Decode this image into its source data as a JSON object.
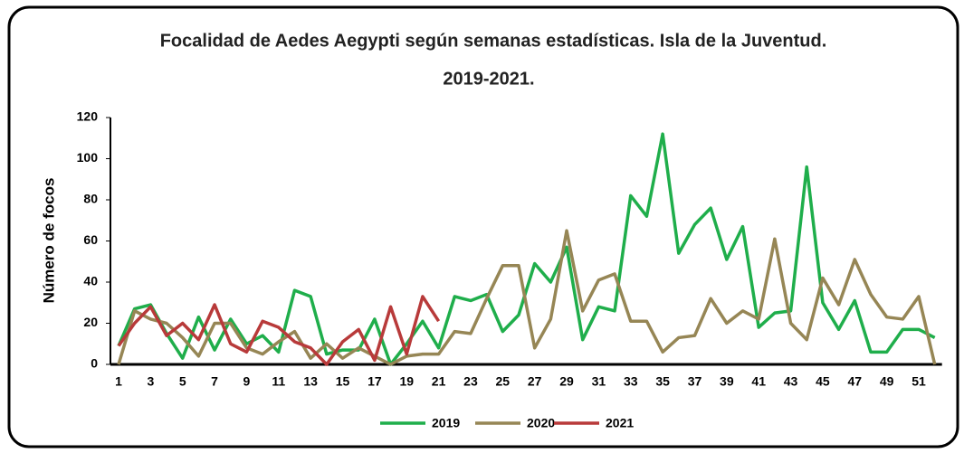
{
  "chart_data": {
    "type": "line",
    "title": [
      "Focalidad de Aedes Aegypti según semanas estadísticas. Isla de la Juventud.",
      "2019-2021."
    ],
    "ylabel": "Número de focos",
    "categories": [
      "1",
      null,
      "3",
      null,
      "5",
      null,
      "7",
      null,
      "9",
      null,
      "11",
      null,
      "13",
      null,
      "15",
      null,
      "17",
      null,
      "19",
      null,
      "21",
      null,
      "23",
      null,
      "25",
      null,
      "27",
      null,
      "29",
      null,
      "31",
      null,
      "33",
      null,
      "35",
      null,
      "37",
      null,
      "39",
      null,
      "41",
      null,
      "43",
      null,
      "45",
      null,
      "47",
      null,
      "49",
      null,
      "51",
      null
    ],
    "series": [
      {
        "name": "2019",
        "color": "#1fae4b",
        "values": [
          9,
          27,
          29,
          15,
          3,
          23,
          7,
          22,
          10,
          14,
          6,
          36,
          33,
          5,
          7,
          7,
          22,
          0,
          10,
          21,
          8,
          33,
          31,
          34,
          16,
          24,
          49,
          40,
          57,
          12,
          28,
          26,
          82,
          72,
          112,
          54,
          68,
          76,
          51,
          67,
          18,
          25,
          26,
          96,
          30,
          17,
          31,
          6,
          6,
          17,
          17,
          13
        ]
      },
      {
        "name": "2020",
        "color": "#968655",
        "values": [
          0,
          26,
          22,
          20,
          13,
          4,
          20,
          20,
          8,
          5,
          11,
          16,
          3,
          10,
          3,
          8,
          4,
          0,
          4,
          5,
          5,
          16,
          15,
          32,
          48,
          48,
          8,
          22,
          65,
          26,
          41,
          44,
          21,
          21,
          6,
          13,
          14,
          32,
          20,
          26,
          22,
          61,
          20,
          12,
          42,
          29,
          51,
          34,
          23,
          22,
          33,
          0
        ]
      },
      {
        "name": "2021",
        "color": "#b83a3a",
        "values": [
          9,
          20,
          28,
          14,
          20,
          12,
          29,
          10,
          6,
          21,
          18,
          11,
          8,
          0,
          11,
          17,
          2,
          28,
          5,
          33,
          21,
          null,
          null,
          null,
          null,
          null,
          null,
          null,
          null,
          null,
          null,
          null,
          null,
          null,
          null,
          null,
          null,
          null,
          null,
          null,
          null,
          null,
          null,
          null,
          null,
          null,
          null,
          null,
          null,
          null,
          null,
          null
        ]
      }
    ],
    "ylim": [
      0,
      120
    ],
    "yticks": [
      0,
      20,
      40,
      60,
      80,
      100,
      120
    ],
    "grid": false
  }
}
